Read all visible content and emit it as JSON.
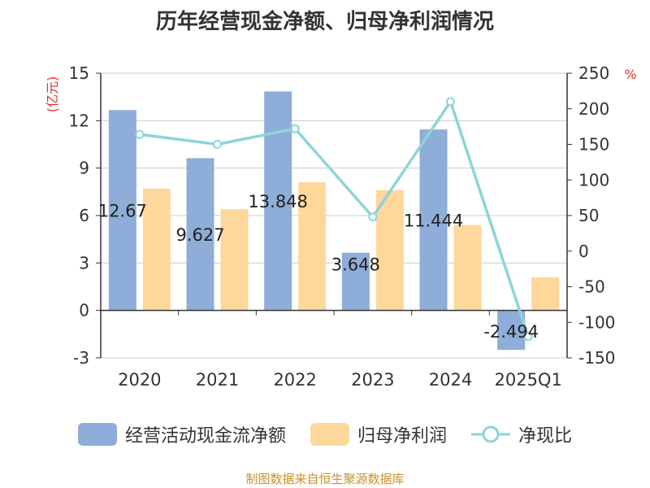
{
  "title": "历年经营现金净额、归母净利润情况",
  "source": "制图数据来自恒生聚源数据库",
  "colors": {
    "cash": "#8eadd8",
    "profit": "#fed89b",
    "ratio": "#8dd4d8",
    "axis_unit": "#e0302f",
    "source": "#c8922a"
  },
  "chart_data": {
    "type": "bar",
    "categories": [
      "2020",
      "2021",
      "2022",
      "2023",
      "2024",
      "2025Q1"
    ],
    "left_axis": {
      "unit": "(亿元)",
      "ylim": [
        -3,
        15
      ],
      "ticks": [
        "-3",
        "0",
        "3",
        "6",
        "9",
        "12",
        "15"
      ]
    },
    "right_axis": {
      "unit": "%",
      "ylim": [
        -150,
        250
      ],
      "ticks": [
        "-150",
        "-100",
        "-50",
        "0",
        "50",
        "100",
        "150",
        "200",
        "250"
      ]
    },
    "series": [
      {
        "name": "经营活动现金流净额",
        "type": "bar",
        "axis": "left",
        "values": [
          12.67,
          9.627,
          13.848,
          3.648,
          11.444,
          -2.494
        ],
        "labels": [
          "12.67",
          "9.627",
          "13.848",
          "3.648",
          "11.444",
          "-2.494"
        ]
      },
      {
        "name": "归母净利润",
        "type": "bar",
        "axis": "left",
        "values": [
          7.7,
          6.4,
          8.1,
          7.6,
          5.4,
          2.1
        ]
      },
      {
        "name": "净现比",
        "type": "line",
        "axis": "right",
        "values": [
          164,
          150,
          172,
          48,
          210,
          -120
        ]
      }
    ],
    "grid": true,
    "legend": "bottom"
  }
}
